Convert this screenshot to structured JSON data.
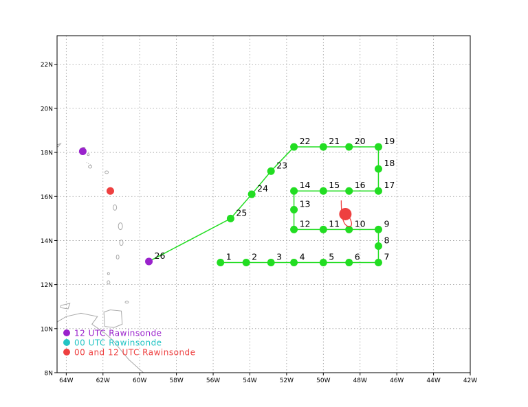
{
  "map": {
    "lon_range": [
      -64.5,
      -42
    ],
    "lat_range": [
      8,
      23.3
    ],
    "x_ticks": [
      {
        "lon": -64,
        "label": "64W"
      },
      {
        "lon": -62,
        "label": "62W"
      },
      {
        "lon": -60,
        "label": "60W"
      },
      {
        "lon": -58,
        "label": "58W"
      },
      {
        "lon": -56,
        "label": "56W"
      },
      {
        "lon": -54,
        "label": "54W"
      },
      {
        "lon": -52,
        "label": "52W"
      },
      {
        "lon": -50,
        "label": "50W"
      },
      {
        "lon": -48,
        "label": "48W"
      },
      {
        "lon": -46,
        "label": "46W"
      },
      {
        "lon": -44,
        "label": "44W"
      },
      {
        "lon": -42,
        "label": "42W"
      }
    ],
    "y_ticks": [
      {
        "lat": 8,
        "label": "8N"
      },
      {
        "lat": 10,
        "label": "10N"
      },
      {
        "lat": 12,
        "label": "12N"
      },
      {
        "lat": 14,
        "label": "14N"
      },
      {
        "lat": 16,
        "label": "16N"
      },
      {
        "lat": 18,
        "label": "18N"
      },
      {
        "lat": 20,
        "label": "20N"
      },
      {
        "lat": 22,
        "label": "22N"
      }
    ],
    "grid": true,
    "grid_style": "dotted"
  },
  "colors": {
    "track": "#22dd22",
    "purple": "#9a22cc",
    "cyan": "#22c4c4",
    "red": "#ee4040",
    "coast": "#a8a8a8"
  },
  "flight_track": [
    {
      "label": "1",
      "lon": -55.6,
      "lat": 13.0
    },
    {
      "label": "2",
      "lon": -54.2,
      "lat": 13.0
    },
    {
      "label": "3",
      "lon": -52.85,
      "lat": 13.0
    },
    {
      "label": "4",
      "lon": -51.6,
      "lat": 13.0
    },
    {
      "label": "5",
      "lon": -50.0,
      "lat": 13.0
    },
    {
      "label": "6",
      "lon": -48.6,
      "lat": 13.0
    },
    {
      "label": "7",
      "lon": -47.0,
      "lat": 13.0
    },
    {
      "label": "8",
      "lon": -47.0,
      "lat": 13.75
    },
    {
      "label": "9",
      "lon": -47.0,
      "lat": 14.5
    },
    {
      "label": "10",
      "lon": -48.6,
      "lat": 14.5
    },
    {
      "label": "11",
      "lon": -50.0,
      "lat": 14.5
    },
    {
      "label": "12",
      "lon": -51.6,
      "lat": 14.5
    },
    {
      "label": "13",
      "lon": -51.6,
      "lat": 15.4
    },
    {
      "label": "14",
      "lon": -51.6,
      "lat": 16.25
    },
    {
      "label": "15",
      "lon": -50.0,
      "lat": 16.25
    },
    {
      "label": "16",
      "lon": -48.6,
      "lat": 16.25
    },
    {
      "label": "17",
      "lon": -47.0,
      "lat": 16.25
    },
    {
      "label": "18",
      "lon": -47.0,
      "lat": 17.25
    },
    {
      "label": "19",
      "lon": -47.0,
      "lat": 18.25
    },
    {
      "label": "20",
      "lon": -48.6,
      "lat": 18.25
    },
    {
      "label": "21",
      "lon": -50.0,
      "lat": 18.25
    },
    {
      "label": "22",
      "lon": -51.6,
      "lat": 18.25
    },
    {
      "label": "23",
      "lon": -52.85,
      "lat": 17.15
    },
    {
      "label": "24",
      "lon": -53.9,
      "lat": 16.1
    },
    {
      "label": "25",
      "lon": -55.05,
      "lat": 15.0
    },
    {
      "label": "26",
      "lon": -59.5,
      "lat": 13.05
    }
  ],
  "storm_center": {
    "lon": -48.8,
    "lat": 15.2
  },
  "stations": [
    {
      "type": "12 UTC",
      "lon": -63.1,
      "lat": 18.05
    },
    {
      "type": "00 and 12 UTC",
      "lon": -61.6,
      "lat": 16.25
    },
    {
      "type": "12 UTC",
      "lon": -59.5,
      "lat": 13.05
    }
  ],
  "legend": [
    {
      "label": "12 UTC Rawinsonde",
      "color": "#9a22cc"
    },
    {
      "label": "00 UTC Rawinsonde",
      "color": "#22c4c4"
    },
    {
      "label": "00 and 12 UTC Rawinsonde",
      "color": "#ee4040"
    }
  ]
}
